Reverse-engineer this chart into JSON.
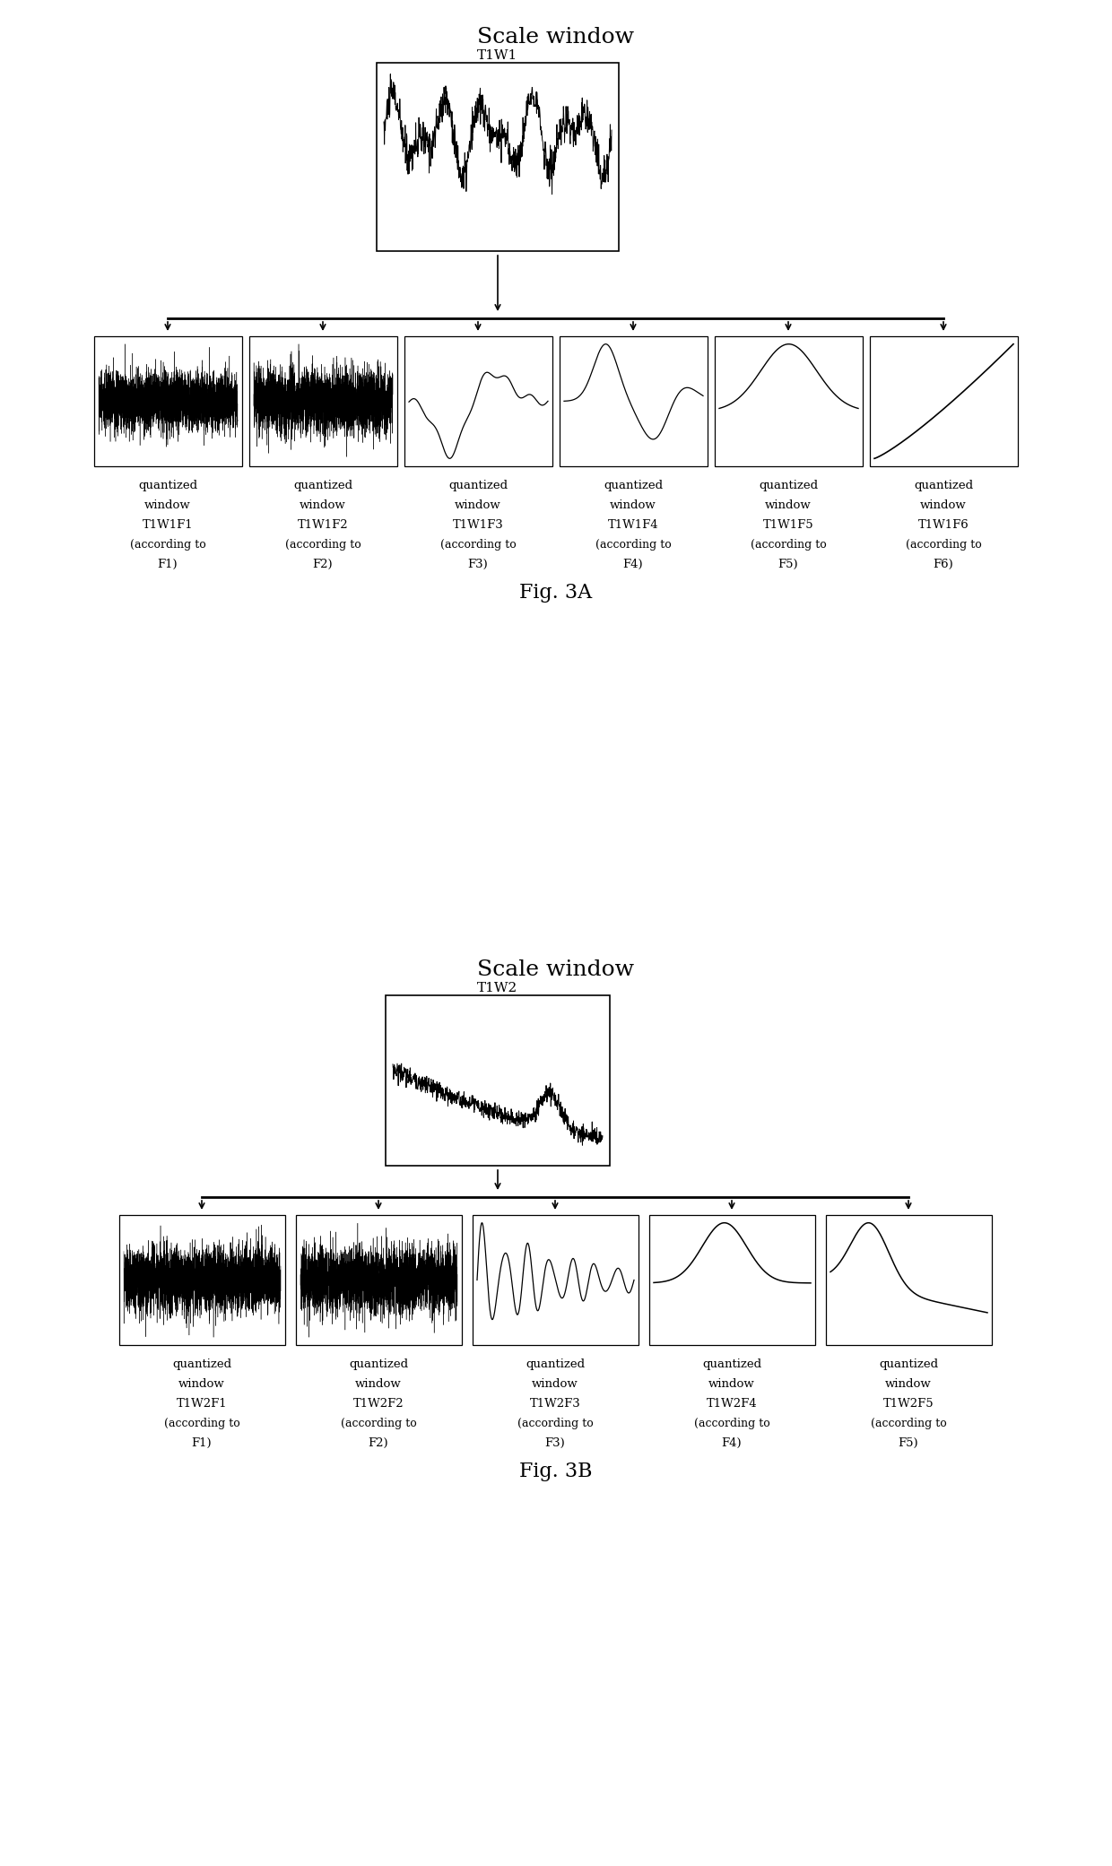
{
  "fig_width": 12.4,
  "fig_height": 20.81,
  "bg_color": "#ffffff",
  "title_3a": "Scale window",
  "title_3b": "Scale window",
  "top_label_3a": "T1W1",
  "top_label_3b": "T1W2",
  "fig3a_label": "Fig. 3A",
  "fig3b_label": "Fig. 3B",
  "child_labels_3a": [
    "T1W1F1",
    "T1W1F2",
    "T1W1F3",
    "T1W1F4",
    "T1W1F5",
    "T1W1F6"
  ],
  "child_labels_3b": [
    "T1W2F1",
    "T1W2F2",
    "T1W2F3",
    "T1W2F4",
    "T1W2F5"
  ],
  "child_acc_labels_3a": [
    "F1)",
    "F2)",
    "F3)",
    "F4)",
    "F5)",
    "F6)"
  ],
  "child_acc_labels_3b": [
    "F1)",
    "F2)",
    "F3)",
    "F4)",
    "F5)"
  ],
  "text_color": "#000000",
  "box_color": "#000000",
  "line_color": "#000000",
  "title_fontsize": 18,
  "label_fontsize": 10,
  "sublabel_fontsize": 9,
  "fig_label_fontsize": 16
}
